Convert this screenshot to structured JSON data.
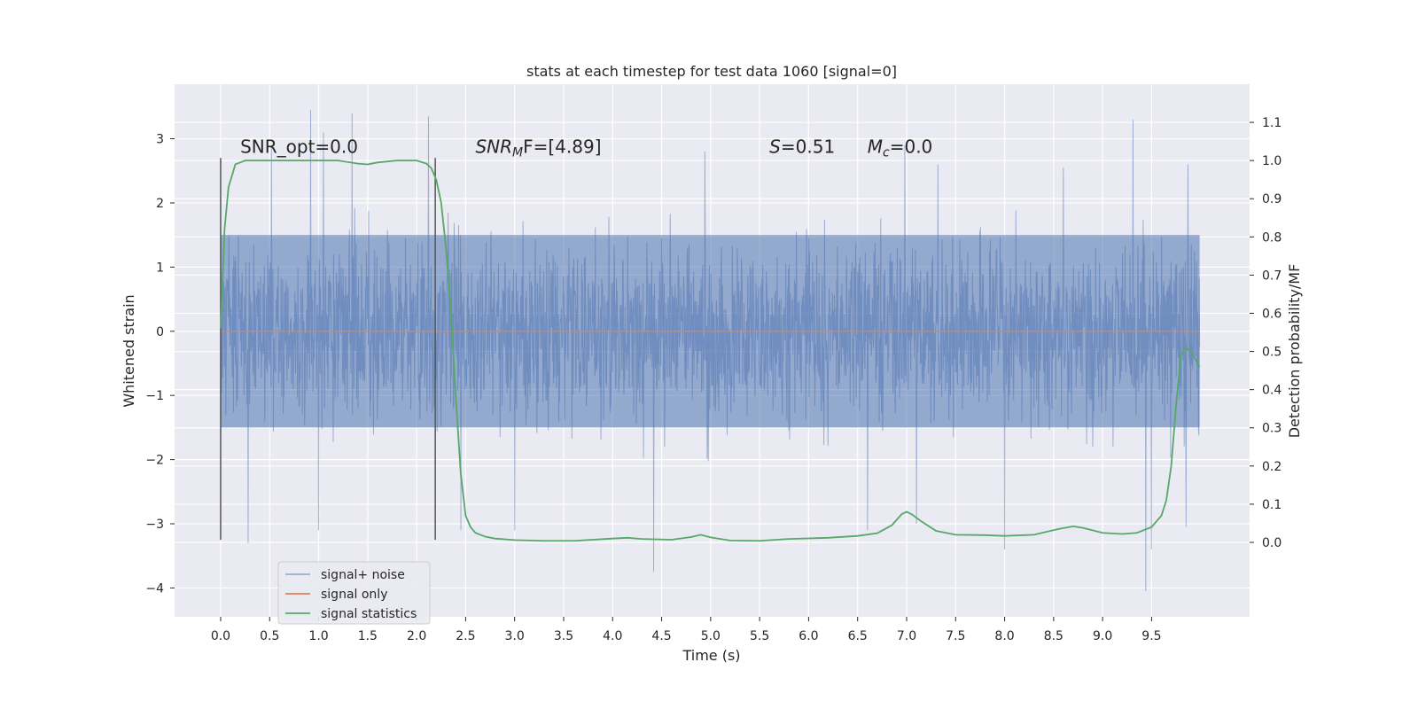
{
  "chart_data": {
    "type": "line",
    "title": "stats at each timestep for test data 1060 [signal=0]",
    "xlabel": "Time (s)",
    "ylabel": "Whitened strain",
    "y2label": "Detection probability/MF",
    "xlim": [
      -0.47,
      10.5
    ],
    "ylim": [
      -4.45,
      3.85
    ],
    "y2lim": [
      -0.195,
      1.2
    ],
    "xticks": [
      0.0,
      0.5,
      1.0,
      1.5,
      2.0,
      2.5,
      3.0,
      3.5,
      4.0,
      4.5,
      5.0,
      5.5,
      6.0,
      6.5,
      7.0,
      7.5,
      8.0,
      8.5,
      9.0,
      9.5
    ],
    "xtick_labels": [
      "0.0",
      "0.5",
      "1.0",
      "1.5",
      "2.0",
      "2.5",
      "3.0",
      "3.5",
      "4.0",
      "4.5",
      "5.0",
      "5.5",
      "6.0",
      "6.5",
      "7.0",
      "7.5",
      "8.0",
      "8.5",
      "9.0",
      "9.5"
    ],
    "yticks": [
      -4,
      -3,
      -2,
      -1,
      0,
      1,
      2,
      3
    ],
    "ytick_labels": [
      "−4",
      "−3",
      "−2",
      "−1",
      "0",
      "1",
      "2",
      "3"
    ],
    "y2ticks": [
      0.0,
      0.1,
      0.2,
      0.3,
      0.4,
      0.5,
      0.6,
      0.7,
      0.8,
      0.9,
      1.0,
      1.1
    ],
    "y2tick_labels": [
      "0.0",
      "0.1",
      "0.2",
      "0.3",
      "0.4",
      "0.5",
      "0.6",
      "0.7",
      "0.8",
      "0.9",
      "1.0",
      "1.1"
    ],
    "grid": true,
    "legend_position": "lower-left",
    "vlines": [
      {
        "x": 0.0,
        "ymin": -3.25,
        "ymax": 2.7
      },
      {
        "x": 2.19,
        "ymin": -3.25,
        "ymax": 2.7
      }
    ],
    "annotations": [
      {
        "id": "snr-opt",
        "text": "SNR_opt=0.0",
        "x": 0.2,
        "y": 2.78
      },
      {
        "id": "snr-mf",
        "text_main": "SNR",
        "text_sub": "M",
        "text_rest": "F=[4.89]",
        "x": 2.6,
        "y": 2.78
      },
      {
        "id": "s-value",
        "text_main": "S",
        "text_rest": "=0.51",
        "x": 5.6,
        "y": 2.78
      },
      {
        "id": "mc-value",
        "text_main": "M",
        "text_sub": "c",
        "text_rest": "=0.0",
        "x": 6.6,
        "y": 2.78
      }
    ],
    "series": [
      {
        "name": "signal+ noise",
        "color": "#4c72b0",
        "opacity": 0.5,
        "style": "noise",
        "x_start": 0.0,
        "x_end": 9.99,
        "envelope": [
          1.8,
          -1.8
        ],
        "spikes_up": [
          [
            0.92,
            3.45
          ],
          [
            1.34,
            3.4
          ],
          [
            2.12,
            3.35
          ],
          [
            9.31,
            3.3
          ],
          [
            1.05,
            3.1
          ],
          [
            0.52,
            2.9
          ],
          [
            6.98,
            2.9
          ],
          [
            4.94,
            2.8
          ],
          [
            7.32,
            2.6
          ],
          [
            8.6,
            2.55
          ],
          [
            9.87,
            2.6
          ]
        ],
        "spikes_down": [
          [
            4.42,
            -3.75
          ],
          [
            9.44,
            -4.05
          ],
          [
            0.28,
            -3.3
          ],
          [
            8.0,
            -3.4
          ],
          [
            9.5,
            -3.4
          ],
          [
            2.45,
            -3.1
          ],
          [
            6.6,
            -3.1
          ],
          [
            3.0,
            -3.1
          ],
          [
            7.1,
            -3.0
          ],
          [
            9.85,
            -3.05
          ],
          [
            1.0,
            -3.1
          ]
        ]
      },
      {
        "name": "signal only",
        "color": "#dd8452",
        "x": [
          0.0,
          9.99
        ],
        "y": [
          0.0,
          0.0
        ]
      },
      {
        "name": "signal statistics",
        "color": "#55a868",
        "axis": "right",
        "x": [
          0.0,
          0.04,
          0.08,
          0.15,
          0.25,
          0.4,
          0.6,
          0.9,
          1.2,
          1.4,
          1.5,
          1.6,
          1.8,
          2.0,
          2.1,
          2.15,
          2.2,
          2.25,
          2.3,
          2.35,
          2.4,
          2.45,
          2.5,
          2.55,
          2.6,
          2.7,
          2.8,
          3.0,
          3.3,
          3.6,
          4.0,
          4.15,
          4.3,
          4.6,
          4.8,
          4.9,
          5.0,
          5.2,
          5.5,
          5.8,
          6.2,
          6.5,
          6.7,
          6.85,
          6.95,
          7.0,
          7.05,
          7.15,
          7.3,
          7.5,
          7.8,
          8.0,
          8.3,
          8.55,
          8.7,
          8.8,
          9.0,
          9.2,
          9.35,
          9.5,
          9.6,
          9.65,
          9.7,
          9.75,
          9.8,
          9.85,
          9.9,
          9.99
        ],
        "y": [
          0.56,
          0.82,
          0.93,
          0.99,
          1.0,
          1.0,
          1.0,
          1.0,
          1.0,
          0.992,
          0.99,
          0.995,
          1.0,
          1.0,
          0.992,
          0.98,
          0.95,
          0.89,
          0.77,
          0.6,
          0.38,
          0.18,
          0.07,
          0.04,
          0.025,
          0.015,
          0.01,
          0.006,
          0.004,
          0.004,
          0.01,
          0.012,
          0.009,
          0.007,
          0.014,
          0.02,
          0.013,
          0.005,
          0.004,
          0.009,
          0.012,
          0.017,
          0.024,
          0.045,
          0.074,
          0.08,
          0.074,
          0.055,
          0.03,
          0.02,
          0.019,
          0.017,
          0.02,
          0.035,
          0.042,
          0.038,
          0.025,
          0.022,
          0.025,
          0.04,
          0.07,
          0.11,
          0.2,
          0.36,
          0.49,
          0.51,
          0.5,
          0.46
        ]
      }
    ]
  }
}
